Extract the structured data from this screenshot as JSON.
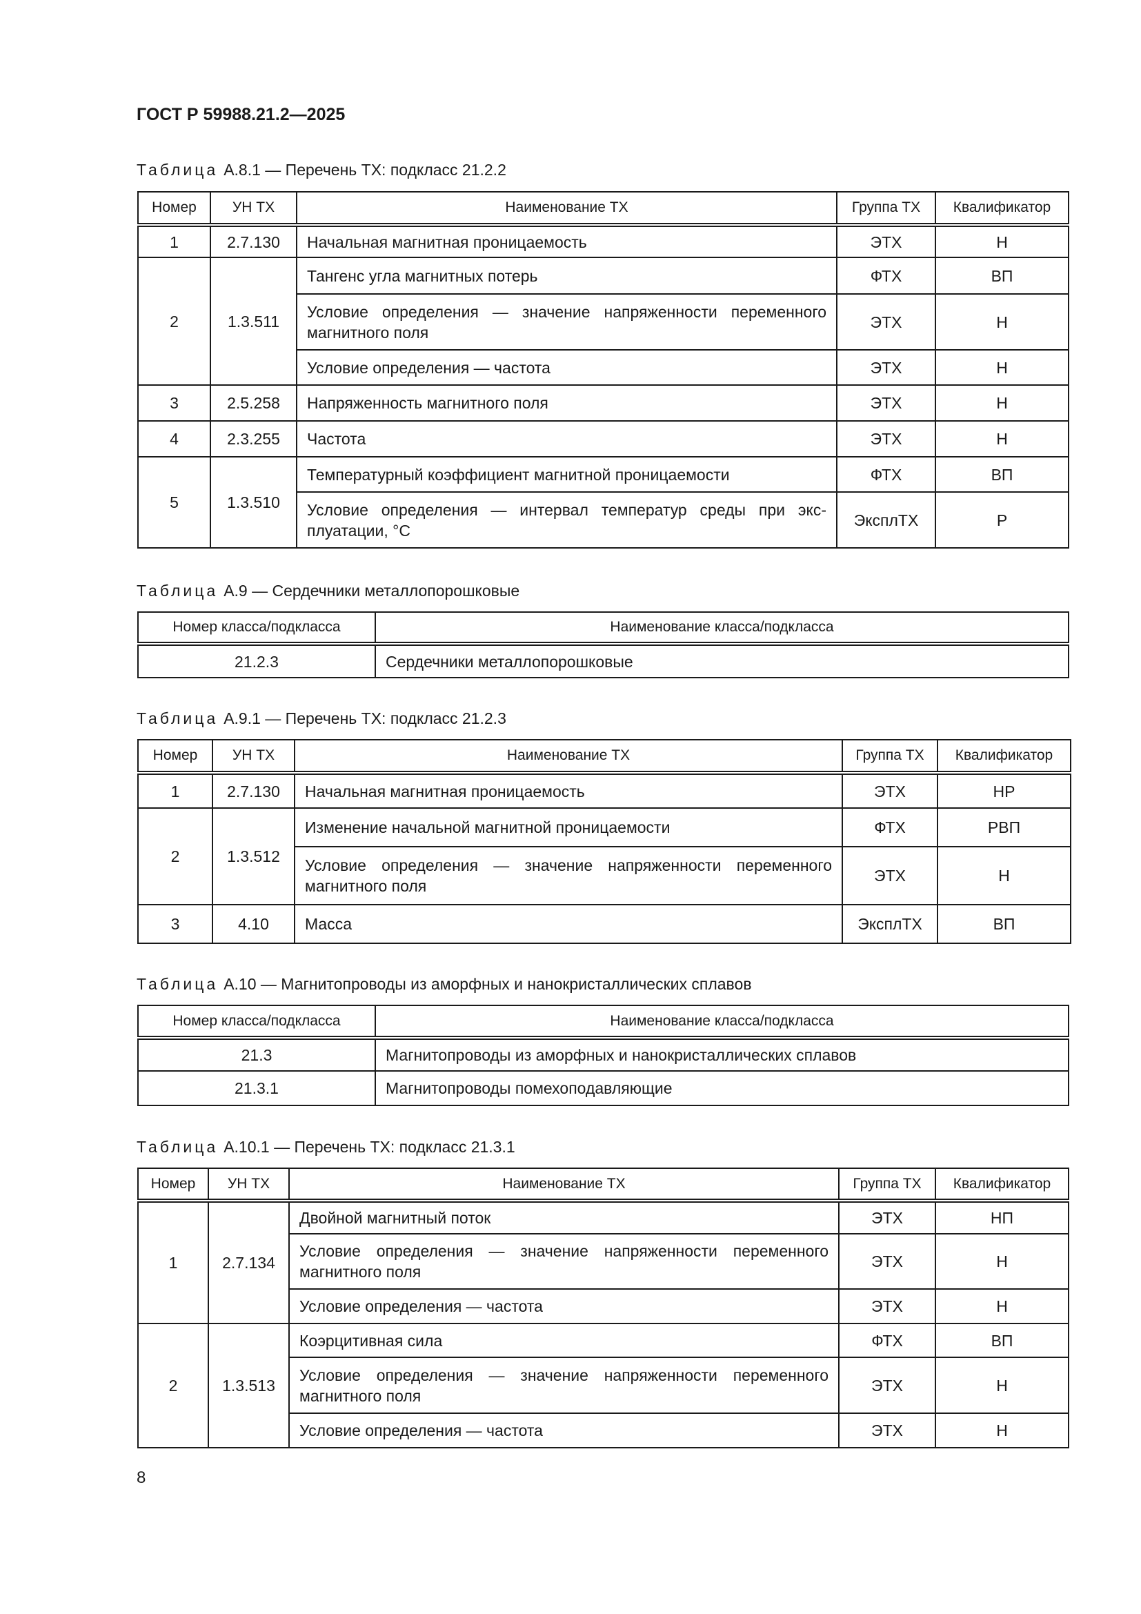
{
  "header": {
    "title": "ГОСТ Р 59988.21.2—2025"
  },
  "tables": [
    {
      "kind": "tx",
      "caption_label": "Таблица",
      "caption": "А.8.1 — Перечень ТХ: подкласс 21.2.2",
      "headers": [
        "Номер",
        "УН ТХ",
        "Наименование ТХ",
        "Группа ТХ",
        "Квалификатор"
      ],
      "groups": [
        {
          "num": "1",
          "code": "2.7.130",
          "items": [
            {
              "name": "Начальная магнитная проницаемость",
              "group": "ЭТХ",
              "qual": "Н"
            }
          ]
        },
        {
          "num": "2",
          "code": "1.3.511",
          "items": [
            {
              "name": "Тангенс угла магнитных потерь",
              "group": "ФТХ",
              "qual": "ВП"
            },
            {
              "name": "Условие определения — значение напряженности переменного магнитного поля",
              "group": "ЭТХ",
              "qual": "Н"
            },
            {
              "name": "Условие определения — частота",
              "group": "ЭТХ",
              "qual": "Н"
            }
          ]
        },
        {
          "num": "3",
          "code": "2.5.258",
          "items": [
            {
              "name": "Напряженность магнитного поля",
              "group": "ЭТХ",
              "qual": "Н"
            }
          ]
        },
        {
          "num": "4",
          "code": "2.3.255",
          "items": [
            {
              "name": "Частота",
              "group": "ЭТХ",
              "qual": "Н"
            }
          ]
        },
        {
          "num": "5",
          "code": "1.3.510",
          "items": [
            {
              "name": "Температурный коэффициент магнитной проницаемости",
              "group": "ФТХ",
              "qual": "ВП"
            },
            {
              "name": "Условие определения — интервал температур среды при экс-плуатации, °С",
              "group": "ЭксплТХ",
              "qual": "Р"
            }
          ]
        }
      ]
    },
    {
      "kind": "class",
      "caption_label": "Таблица",
      "caption": "А.9 — Сердечники металлопорошковые",
      "headers": [
        "Номер класса/подкласса",
        "Наименование класса/подкласса"
      ],
      "rows": [
        {
          "code": "21.2.3",
          "name": "Сердечники металлопорошковые"
        }
      ]
    },
    {
      "kind": "tx",
      "caption_label": "Таблица",
      "caption": "А.9.1 — Перечень ТХ: подкласс 21.2.3",
      "headers": [
        "Номер",
        "УН ТХ",
        "Наименование ТХ",
        "Группа ТХ",
        "Квалификатор"
      ],
      "groups": [
        {
          "num": "1",
          "code": "2.7.130",
          "items": [
            {
              "name": "Начальная магнитная проницаемость",
              "group": "ЭТХ",
              "qual": "НР"
            }
          ]
        },
        {
          "num": "2",
          "code": "1.3.512",
          "items": [
            {
              "name": "Изменение начальной магнитной проницаемости",
              "group": "ФТХ",
              "qual": "РВП"
            },
            {
              "name": "Условие определения — значение напряженности переменного магнитного поля",
              "group": "ЭТХ",
              "qual": "Н"
            }
          ]
        },
        {
          "num": "3",
          "code": "4.10",
          "items": [
            {
              "name": "Масса",
              "group": "ЭксплТХ",
              "qual": "ВП"
            }
          ]
        }
      ]
    },
    {
      "kind": "class",
      "caption_label": "Таблица",
      "caption": "А.10 — Магнитопроводы из аморфных и нанокристаллических сплавов",
      "headers": [
        "Номер класса/подкласса",
        "Наименование класса/подкласса"
      ],
      "rows": [
        {
          "code": "21.3",
          "name": "Магнитопроводы из аморфных и нанокристаллических сплавов"
        },
        {
          "code": "21.3.1",
          "name": "Магнитопроводы помехоподавляющие"
        }
      ]
    },
    {
      "kind": "tx",
      "caption_label": "Таблица",
      "caption": "А.10.1 — Перечень ТХ: подкласс 21.3.1",
      "headers": [
        "Номер",
        "УН ТХ",
        "Наименование ТХ",
        "Группа ТХ",
        "Квалификатор"
      ],
      "groups": [
        {
          "num": "1",
          "code": "2.7.134",
          "items": [
            {
              "name": "Двойной магнитный поток",
              "group": "ЭТХ",
              "qual": "НП"
            },
            {
              "name": "Условие определения — значение напряженности переменного магнитного поля",
              "group": "ЭТХ",
              "qual": "Н"
            },
            {
              "name": "Условие определения — частота",
              "group": "ЭТХ",
              "qual": "Н"
            }
          ]
        },
        {
          "num": "2",
          "code": "1.3.513",
          "items": [
            {
              "name": "Коэрцитивная сила",
              "group": "ФТХ",
              "qual": "ВП"
            },
            {
              "name": "Условие определения — значение напряженности переменного магнитного поля",
              "group": "ЭТХ",
              "qual": "Н"
            },
            {
              "name": "Условие определения — частота",
              "group": "ЭТХ",
              "qual": "Н"
            }
          ]
        }
      ]
    }
  ],
  "footer": {
    "page_number": "8"
  }
}
